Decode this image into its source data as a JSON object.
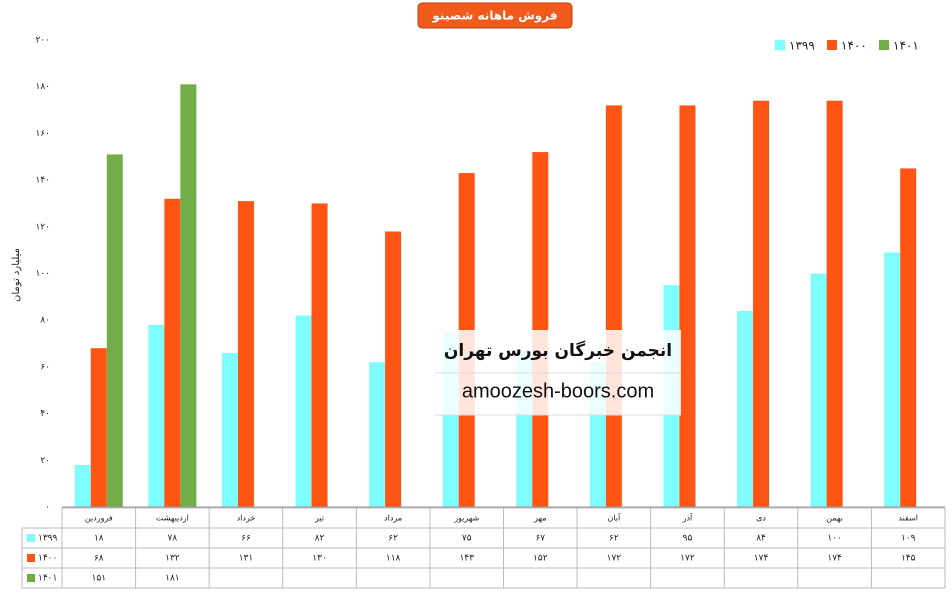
{
  "chart_data": {
    "type": "bar",
    "title": "فروش ماهانه شصینو",
    "y_label": "میلیارد تومان",
    "annotations": [
      "انجمن خبرگان بورس تهران",
      "amoozesh-boors.com"
    ],
    "categories": [
      "فروردین",
      "اردیبهشت",
      "خرداد",
      "تیر",
      "مرداد",
      "شهریور",
      "مهر",
      "آبان",
      "آذر",
      "دی",
      "بهمن",
      "اسفند"
    ],
    "series": [
      {
        "name": "۱۳۹۹",
        "color": "#7ffcfc",
        "values": [
          18,
          78,
          66,
          82,
          62,
          75,
          67,
          62,
          95,
          84,
          100,
          109
        ],
        "value_labels": [
          "۱۸",
          "۷۸",
          "۶۶",
          "۸۲",
          "۶۲",
          "۷۵",
          "۶۷",
          "۶۲",
          "۹۵",
          "۸۴",
          "۱۰۰",
          "۱۰۹"
        ]
      },
      {
        "name": "۱۴۰۰",
        "color": "#ff5514",
        "values": [
          68,
          132,
          131,
          130,
          118,
          143,
          152,
          172,
          172,
          174,
          174,
          145
        ],
        "value_labels": [
          "۶۸",
          "۱۳۲",
          "۱۳۱",
          "۱۳۰",
          "۱۱۸",
          "۱۴۳",
          "۱۵۲",
          "۱۷۲",
          "۱۷۲",
          "۱۷۴",
          "۱۷۴",
          "۱۴۵"
        ]
      },
      {
        "name": "۱۴۰۱",
        "color": "#72ad47",
        "values": [
          151,
          181,
          null,
          null,
          null,
          null,
          null,
          null,
          null,
          null,
          null,
          null
        ],
        "value_labels": [
          "۱۵۱",
          "۱۸۱",
          null,
          null,
          null,
          null,
          null,
          null,
          null,
          null,
          null,
          null
        ]
      }
    ],
    "ylim": [
      0,
      200
    ],
    "yticks": [
      {
        "value": 0,
        "label": "۰"
      },
      {
        "value": 20,
        "label": "۲۰"
      },
      {
        "value": 40,
        "label": "۴۰"
      },
      {
        "value": 60,
        "label": "۶۰"
      },
      {
        "value": 80,
        "label": "۸۰"
      },
      {
        "value": 100,
        "label": "۱۰۰"
      },
      {
        "value": 120,
        "label": "۱۲۰"
      },
      {
        "value": 140,
        "label": "۱۴۰"
      },
      {
        "value": 160,
        "label": "۱۶۰"
      },
      {
        "value": 180,
        "label": "۱۸۰"
      },
      {
        "value": 200,
        "label": "۲۰۰"
      }
    ],
    "grid": false,
    "legend": "top-right"
  }
}
